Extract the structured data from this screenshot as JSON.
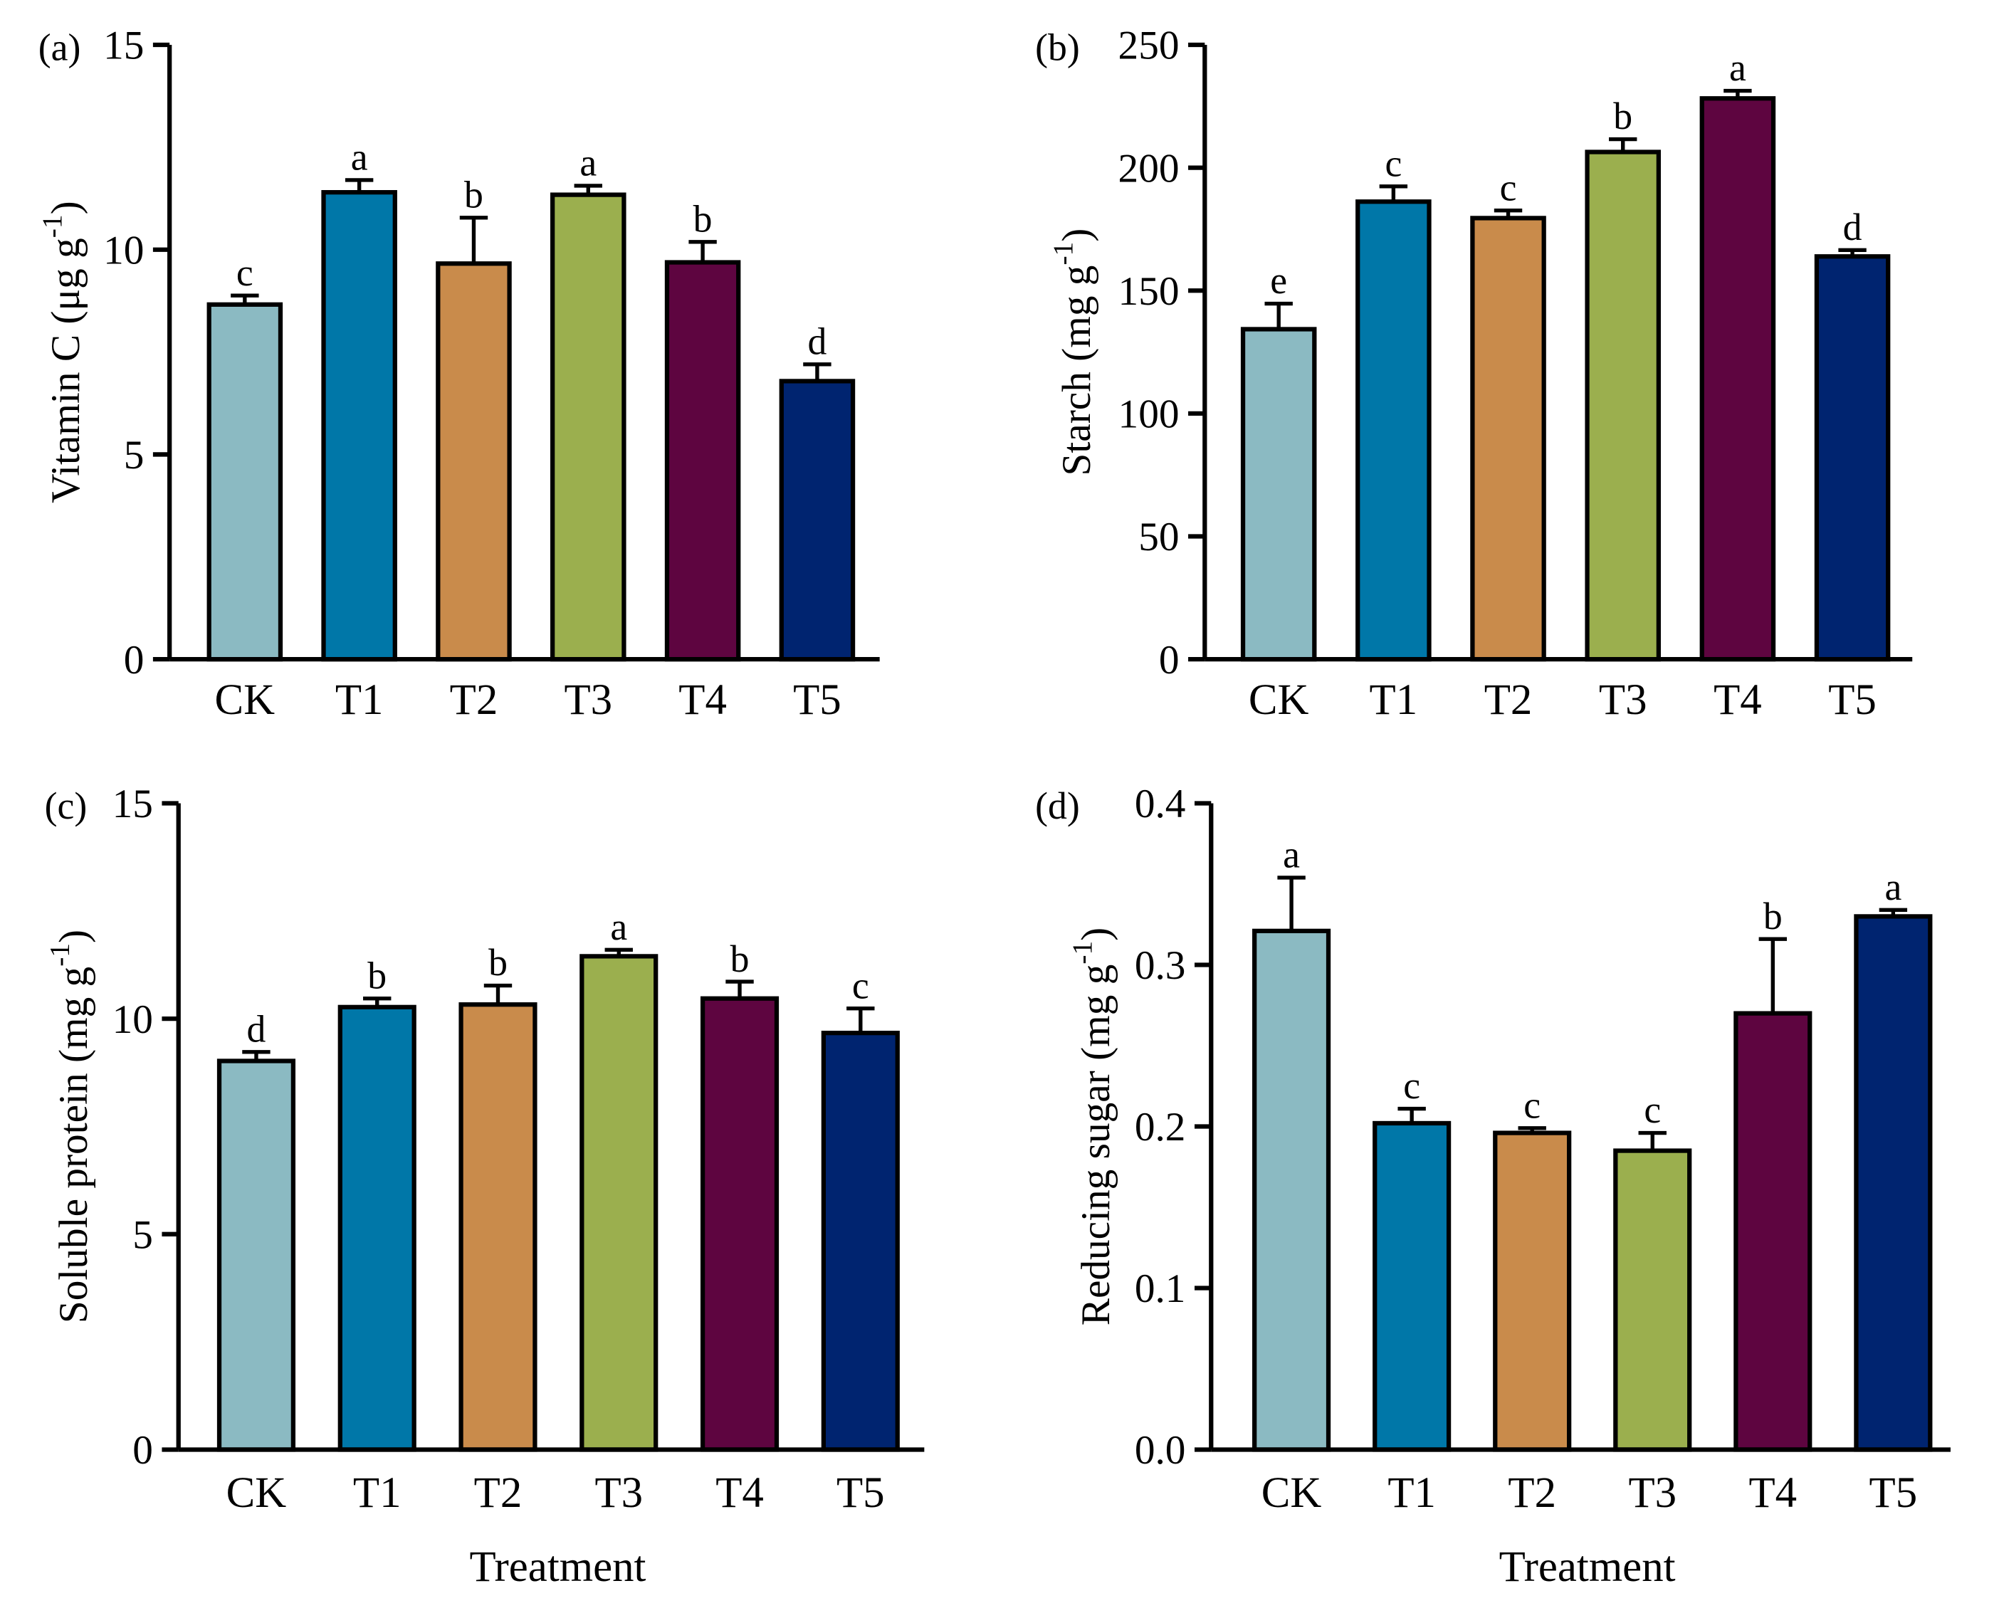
{
  "colors": {
    "CK": "#8BBAC2",
    "T1": "#0077A8",
    "T2": "#C98B4B",
    "T3": "#9BAF4E",
    "T4": "#5E0540",
    "T5": "#002470"
  },
  "chart_data": [
    {
      "type": "bar",
      "panel": "(a)",
      "categories": [
        "CK",
        "T1",
        "T2",
        "T3",
        "T4",
        "T5"
      ],
      "values": [
        8.66,
        11.4,
        9.66,
        11.34,
        9.69,
        6.79
      ],
      "errors": [
        0.22,
        0.3,
        1.12,
        0.22,
        0.5,
        0.41
      ],
      "letters": [
        "c",
        "a",
        "b",
        "a",
        "b",
        "d"
      ],
      "ylabel": {
        "main": "Vitamin C (μg g",
        "sup": "-1",
        "end": ")"
      },
      "xlabel": "",
      "ylim": [
        0,
        15
      ],
      "yticks": [
        "0",
        "5",
        "10",
        "15"
      ]
    },
    {
      "type": "bar",
      "panel": "(b)",
      "categories": [
        "CK",
        "T1",
        "T2",
        "T3",
        "T4",
        "T5"
      ],
      "values": [
        134.3,
        186.2,
        179.5,
        206.4,
        228.2,
        163.9
      ],
      "errors": [
        10.4,
        6.2,
        3.1,
        5.2,
        3.1,
        2.6
      ],
      "letters": [
        "e",
        "c",
        "c",
        "b",
        "a",
        "d"
      ],
      "ylabel": {
        "main": "Starch (mg g",
        "sup": "-1",
        "end": ")"
      },
      "xlabel": "",
      "ylim": [
        0,
        250
      ],
      "yticks": [
        "0",
        "50",
        "100",
        "150",
        "200",
        "250"
      ]
    },
    {
      "type": "bar",
      "panel": "(c)",
      "categories": [
        "CK",
        "T1",
        "T2",
        "T3",
        "T4",
        "T5"
      ],
      "values": [
        9.02,
        10.27,
        10.33,
        11.45,
        10.47,
        9.67
      ],
      "errors": [
        0.21,
        0.2,
        0.44,
        0.15,
        0.39,
        0.57
      ],
      "letters": [
        "d",
        "b",
        "b",
        "a",
        "b",
        "c"
      ],
      "ylabel": {
        "main": "Soluble protein (mg g",
        "sup": "-1",
        "end": ")"
      },
      "xlabel": "Treatment",
      "ylim": [
        0,
        15
      ],
      "yticks": [
        "0",
        "5",
        "10",
        "15"
      ]
    },
    {
      "type": "bar",
      "panel": "(d)",
      "categories": [
        "CK",
        "T1",
        "T2",
        "T3",
        "T4",
        "T5"
      ],
      "values": [
        0.321,
        0.202,
        0.196,
        0.185,
        0.27,
        0.33
      ],
      "errors": [
        0.033,
        0.009,
        0.003,
        0.011,
        0.046,
        0.004
      ],
      "letters": [
        "a",
        "c",
        "c",
        "c",
        "b",
        "a"
      ],
      "ylabel": {
        "main": "Reducing sugar (mg g",
        "sup": "-1",
        "end": ")"
      },
      "xlabel": "Treatment",
      "ylim": [
        0,
        0.4
      ],
      "yticks": [
        "0.0",
        "0.1",
        "0.2",
        "0.3",
        "0.4"
      ]
    }
  ]
}
